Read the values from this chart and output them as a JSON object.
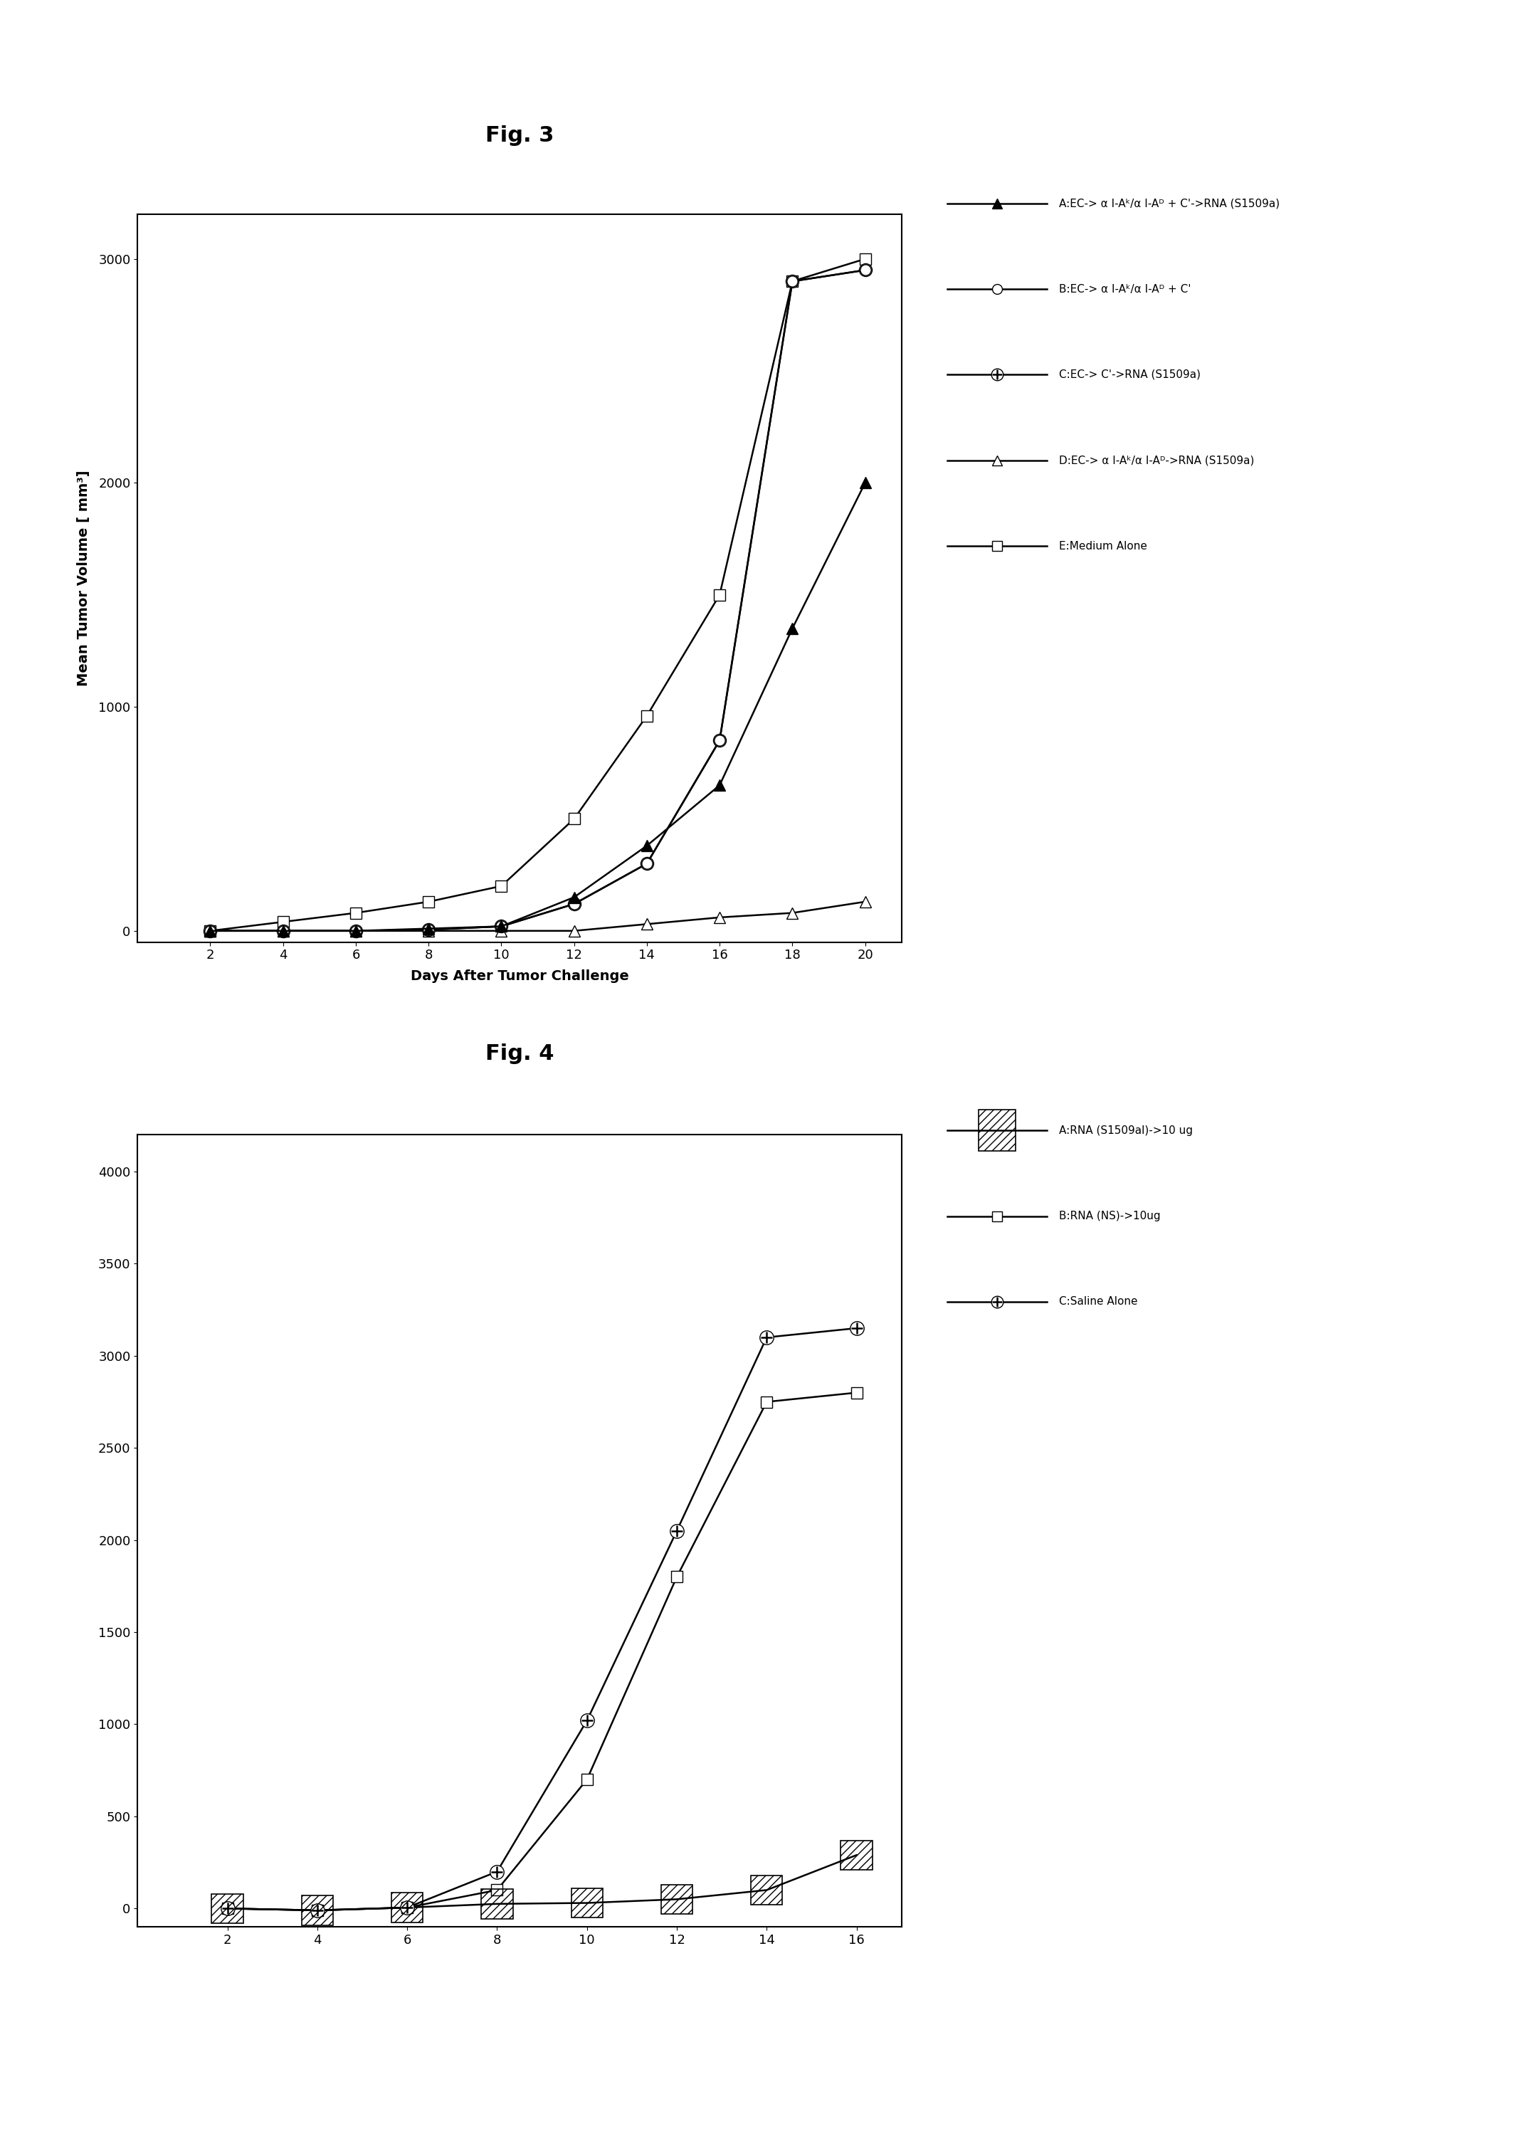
{
  "fig3_title": "Fig. 3",
  "fig3_xlabel": "Days After Tumor Challenge",
  "fig3_ylabel": "Mean Tumor Volume [ mm³]",
  "fig3_xlim": [
    0,
    21
  ],
  "fig3_ylim": [
    -50,
    3200
  ],
  "fig3_xticks": [
    2,
    4,
    6,
    8,
    10,
    12,
    14,
    16,
    18,
    20
  ],
  "fig3_yticks": [
    0,
    1000,
    2000,
    3000
  ],
  "fig3_series": [
    {
      "label": "A:EC-> α I-Aᵏ/α I-Aᴰ + C'->RNA (S1509a)",
      "x": [
        2,
        4,
        6,
        8,
        10,
        12,
        14,
        16,
        18,
        20
      ],
      "y": [
        0,
        0,
        0,
        10,
        20,
        150,
        380,
        650,
        1350,
        2000
      ],
      "extra": "filled_triangle"
    },
    {
      "label": "B:EC-> α I-Aᵏ/α I-Aᴰ + C'",
      "x": [
        2,
        4,
        6,
        8,
        10,
        12,
        14,
        16,
        18,
        20
      ],
      "y": [
        0,
        0,
        0,
        5,
        20,
        120,
        300,
        850,
        2900,
        2950
      ],
      "extra": "open_circle"
    },
    {
      "label": "C:EC-> C'->RNA (S1509a)",
      "x": [
        2,
        4,
        6,
        8,
        10,
        12,
        14,
        16,
        18,
        20
      ],
      "y": [
        0,
        0,
        0,
        5,
        20,
        120,
        300,
        850,
        2900,
        2950
      ],
      "extra": "cross_circle"
    },
    {
      "label": "D:EC-> α I-Aᵏ/α I-Aᴰ->RNA (S1509a)",
      "x": [
        2,
        4,
        6,
        8,
        10,
        12,
        14,
        16,
        18,
        20
      ],
      "y": [
        0,
        0,
        0,
        0,
        0,
        0,
        30,
        60,
        80,
        130
      ],
      "extra": "open_triangle"
    },
    {
      "label": "E:Medium Alone",
      "x": [
        2,
        4,
        6,
        8,
        10,
        12,
        14,
        16,
        18,
        20
      ],
      "y": [
        0,
        40,
        80,
        130,
        200,
        500,
        960,
        1500,
        2900,
        3000
      ],
      "extra": "open_square"
    }
  ],
  "fig4_title": "Fig. 4",
  "fig4_xlim": [
    0,
    17
  ],
  "fig4_ylim": [
    -100,
    4200
  ],
  "fig4_xticks": [
    2,
    4,
    6,
    8,
    10,
    12,
    14,
    16
  ],
  "fig4_yticks": [
    0,
    500,
    1000,
    1500,
    2000,
    2500,
    3000,
    3500,
    4000
  ],
  "fig4_series": [
    {
      "label": "A:RNA (S1509al)->10 ug",
      "x": [
        2,
        4,
        6,
        8,
        10,
        12,
        14,
        16
      ],
      "y": [
        0,
        -10,
        5,
        25,
        30,
        50,
        100,
        290
      ],
      "extra": "hatch_square"
    },
    {
      "label": "B:RNA (NS)->10ug",
      "x": [
        2,
        4,
        6,
        8,
        10,
        12,
        14,
        16
      ],
      "y": [
        0,
        -10,
        5,
        100,
        700,
        1800,
        2750,
        2800
      ],
      "extra": "open_square"
    },
    {
      "label": "C:Saline Alone",
      "x": [
        2,
        4,
        6,
        8,
        10,
        12,
        14,
        16
      ],
      "y": [
        0,
        -10,
        5,
        200,
        1020,
        2050,
        3100,
        3150
      ],
      "extra": "cross_circle"
    }
  ]
}
